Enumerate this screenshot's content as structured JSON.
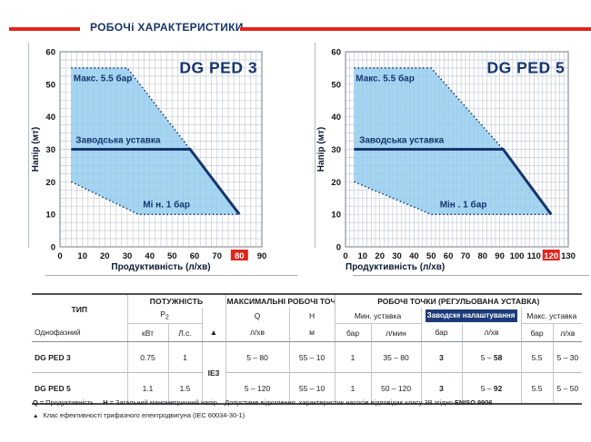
{
  "header": {
    "title": "РОБОЧі ХАРАКТЕРИСТИКИ"
  },
  "colors": {
    "accent": "#e1251b",
    "navy": "#16356f",
    "fill": "#8ecbed",
    "grid": "#c6ccd4",
    "plot_border": "#8d939a",
    "table_bar": "#1c3a78"
  },
  "chart_data": [
    {
      "type": "area",
      "title": "DG PED 3",
      "xlabel": "Продуктивність (л/хв)",
      "ylabel": "Напір (мт)",
      "xlim": [
        0,
        90
      ],
      "ylim": [
        0,
        60
      ],
      "xticks": [
        0,
        10,
        20,
        30,
        40,
        50,
        60,
        70,
        80,
        90
      ],
      "yticks": [
        0,
        10,
        20,
        30,
        40,
        50,
        60
      ],
      "highlight_xtick": 80,
      "grid_step": 2.5,
      "xlabel_align": "middle",
      "region_points": [
        [
          5,
          55
        ],
        [
          30,
          55
        ],
        [
          58,
          30
        ],
        [
          80,
          10
        ],
        [
          35,
          10
        ],
        [
          5,
          20
        ]
      ],
      "max_boundary_points": [
        [
          5,
          55
        ],
        [
          30,
          55
        ],
        [
          58,
          30
        ]
      ],
      "min_boundary_points": [
        [
          5,
          20
        ],
        [
          35,
          10
        ],
        [
          80,
          10
        ]
      ],
      "factory_line_points": [
        [
          5,
          30
        ],
        [
          58,
          30
        ],
        [
          80,
          10
        ]
      ],
      "annotations": [
        {
          "text": "Макс. 5.5 бар",
          "x": 6,
          "y": 51,
          "anchor": "start",
          "cls": "ann"
        },
        {
          "text": "Заводська уставка",
          "x": 7,
          "y": 32,
          "anchor": "start",
          "cls": "ann"
        },
        {
          "text": "Мі н. 1 бар",
          "x": 37,
          "y": 12.2,
          "anchor": "start",
          "cls": "ann"
        },
        {
          "text": "DG PED 3",
          "x": 88,
          "y": 53.5,
          "anchor": "end",
          "cls": "charttitle"
        }
      ]
    },
    {
      "type": "area",
      "title": "DG PED 5",
      "xlabel": "Продуктивність (л/хв)",
      "ylabel": "Напір (мт)",
      "xlim": [
        0,
        130
      ],
      "ylim": [
        0,
        60
      ],
      "xticks": [
        0,
        10,
        20,
        30,
        40,
        50,
        60,
        70,
        80,
        90,
        100,
        110,
        120,
        130
      ],
      "yticks": [
        0,
        10,
        20,
        30,
        40,
        50,
        60
      ],
      "highlight_xtick": 120,
      "grid_step": 2.5,
      "xlabel_align": "start",
      "region_points": [
        [
          5,
          55
        ],
        [
          50,
          55
        ],
        [
          92,
          30
        ],
        [
          120,
          10
        ],
        [
          50,
          10
        ],
        [
          5,
          20
        ]
      ],
      "max_boundary_points": [
        [
          5,
          55
        ],
        [
          50,
          55
        ],
        [
          92,
          30
        ]
      ],
      "min_boundary_points": [
        [
          5,
          20
        ],
        [
          50,
          10
        ],
        [
          120,
          10
        ]
      ],
      "factory_line_points": [
        [
          5,
          30
        ],
        [
          92,
          30
        ],
        [
          120,
          10
        ]
      ],
      "annotations": [
        {
          "text": "Макс. 5.5 бар",
          "x": 6,
          "y": 51,
          "anchor": "start",
          "cls": "ann"
        },
        {
          "text": "Заводська уставка",
          "x": 8,
          "y": 32,
          "anchor": "start",
          "cls": "ann"
        },
        {
          "text": "Мін . 1 бар",
          "x": 55,
          "y": 12.2,
          "anchor": "start",
          "cls": "ann"
        },
        {
          "text": "DG PED 5",
          "x": 128,
          "y": 53.5,
          "anchor": "end",
          "cls": "charttitle"
        }
      ]
    }
  ],
  "table": {
    "col_headers": {
      "type": "ТИП",
      "type_sub": "Однофазний",
      "power": "ПОТУЖНІСТЬ",
      "power_sub_base": "P",
      "power_sub_idx": "2",
      "power_units": [
        "кВт",
        "Л.с."
      ],
      "triangle": "▲",
      "maxpoints": "МАКСИМАЛЬНІ РОБОЧІ ТОЧКИ",
      "q": "Q",
      "h": "H",
      "q_unit": "л/хв",
      "h_unit": "м",
      "working": "РОБОЧІ ТОЧКИ (РЕГУЛЬОВАНА УСТАВКА)",
      "min_set": "Мин. уставка",
      "factory_set": "Заводске налаштування",
      "max_set": "Макс. уставка",
      "min_units": [
        "бар",
        "л/мин"
      ],
      "factory_units": [
        "бар",
        "л/хв"
      ],
      "max_units": [
        "бар",
        "л/хв"
      ]
    },
    "ie_class": "IE3",
    "rows": [
      {
        "name": "DG PED 3",
        "kw": "0.75",
        "hp": "1",
        "q": "5 – 80",
        "h": "55 – 10",
        "min_bar": "1",
        "min_flow": "35 – 80",
        "fact_bar": "3",
        "fact_flow_pre": "5 – ",
        "fact_flow_bold": "58",
        "max_bar": "5.5",
        "max_flow": "5 – 30"
      },
      {
        "name": "DG PED 5",
        "kw": "1.1",
        "hp": "1.5",
        "q": "5 – 120",
        "h": "55 – 10",
        "min_bar": "1",
        "min_flow": "50 – 120",
        "fact_bar": "3",
        "fact_flow_pre": "5 – ",
        "fact_flow_bold": "92",
        "max_bar": "5.5",
        "max_flow": "5 – 50"
      }
    ]
  },
  "footnotes": {
    "line1": [
      {
        "text": "Q ="
      },
      {
        "text": " Продуктивність     "
      },
      {
        "text": "H ="
      },
      {
        "text": " Загальний манометричний напір.   Допустиме відхилення  характеристик насосів відповідає класу 3В згідно "
      },
      {
        "text": "ENISO 9906"
      }
    ],
    "line2_marker": "▲",
    "line2": "Клас ефективності трифазного електродвигуна (IEC 60034-30-1)"
  }
}
